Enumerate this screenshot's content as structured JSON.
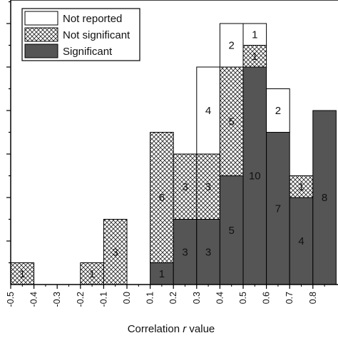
{
  "chart_data": {
    "type": "bar",
    "stacked": true,
    "xlabel_pre": "Correlation ",
    "xlabel_var": "r",
    "xlabel_post": " value",
    "ylabel": "",
    "xlim": [
      -0.5,
      0.9
    ],
    "ylim": [
      0,
      13
    ],
    "bin_width": 0.1,
    "x_ticks": [
      "-0.5",
      "-0.4",
      "-0.3",
      "-0.2",
      "-0.1",
      "0.0",
      "0.1",
      "0.2",
      "0.3",
      "0.4",
      "0.5",
      "0.6",
      "0.7",
      "0.8"
    ],
    "legend": {
      "position": "top-left",
      "entries": [
        "Not reported",
        "Not significant",
        "Significant"
      ]
    },
    "colors": {
      "significant": "#555555",
      "not_significant_pattern": "crosshatch",
      "not_reported": "#ffffff",
      "edge": "#000000"
    },
    "bins": [
      {
        "x0": -0.5,
        "significant": 0,
        "not_significant": 1,
        "not_reported": 0,
        "labels": {
          "not_significant": "1"
        }
      },
      {
        "x0": -0.2,
        "significant": 0,
        "not_significant": 1,
        "not_reported": 0,
        "labels": {
          "not_significant": "1"
        }
      },
      {
        "x0": -0.1,
        "significant": 0,
        "not_significant": 3,
        "not_reported": 0,
        "labels": {
          "not_significant": "3"
        }
      },
      {
        "x0": 0.1,
        "significant": 1,
        "not_significant": 6,
        "not_reported": 0,
        "labels": {
          "significant": "1",
          "not_significant": "6"
        }
      },
      {
        "x0": 0.2,
        "significant": 3,
        "not_significant": 3,
        "not_reported": 0,
        "labels": {
          "significant": "3",
          "not_significant": "3"
        }
      },
      {
        "x0": 0.3,
        "significant": 3,
        "not_significant": 3,
        "not_reported": 4,
        "labels": {
          "significant": "3",
          "not_significant": "3",
          "not_reported": "4"
        }
      },
      {
        "x0": 0.4,
        "significant": 5,
        "not_significant": 5,
        "not_reported": 2,
        "labels": {
          "significant": "5",
          "not_significant": "5",
          "not_reported": "2"
        }
      },
      {
        "x0": 0.5,
        "significant": 10,
        "not_significant": 1,
        "not_reported": 1,
        "labels": {
          "significant": "10",
          "not_significant": "1",
          "not_reported": "1"
        }
      },
      {
        "x0": 0.6,
        "significant": 7,
        "not_significant": 0,
        "not_reported": 2,
        "labels": {
          "significant": "7",
          "not_reported": "2"
        }
      },
      {
        "x0": 0.7,
        "significant": 4,
        "not_significant": 1,
        "not_reported": 0,
        "labels": {
          "significant": "4",
          "not_significant": "1"
        }
      },
      {
        "x0": 0.8,
        "significant": 8,
        "not_significant": 0,
        "not_reported": 0,
        "labels": {
          "significant": "8"
        }
      }
    ]
  }
}
